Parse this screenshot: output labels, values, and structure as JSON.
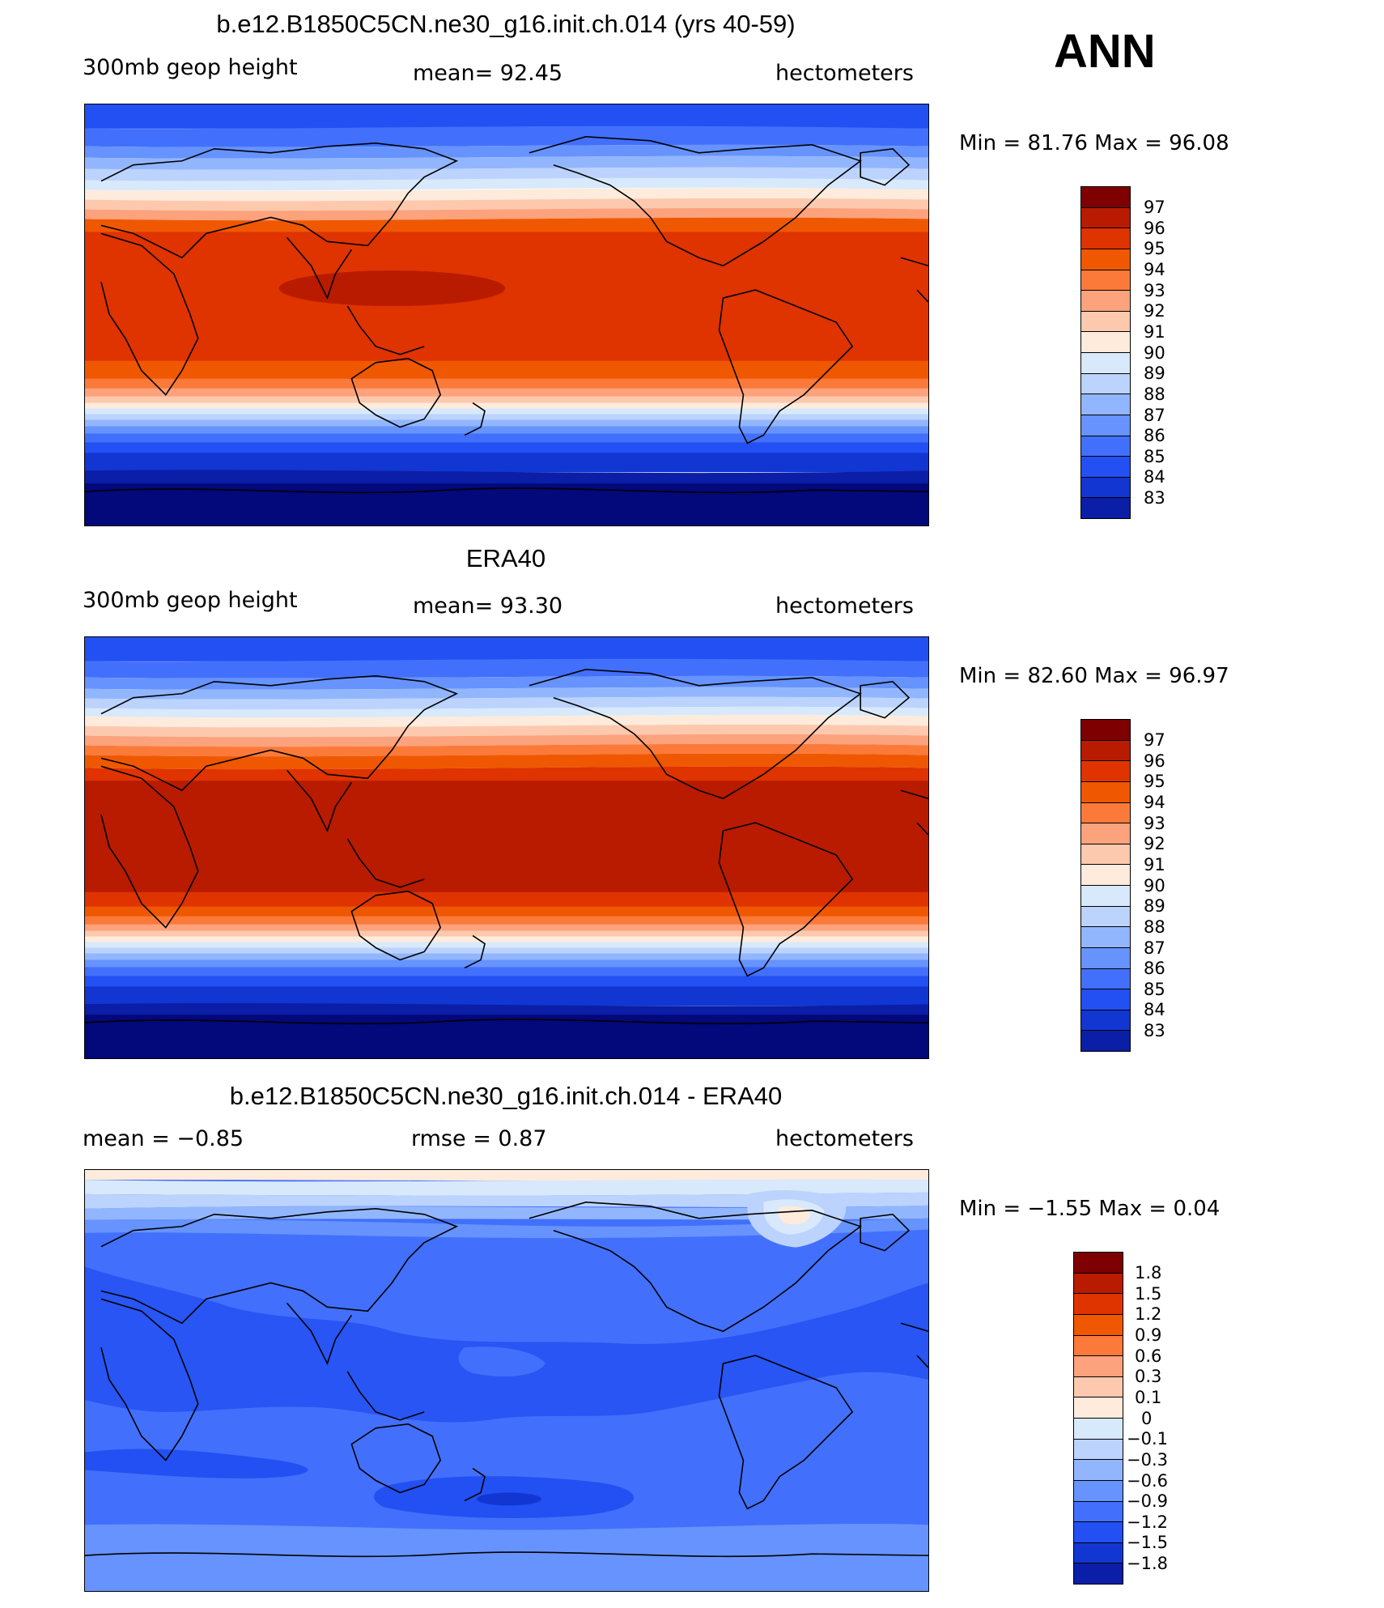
{
  "season": "ANN",
  "palette": {
    "warm": [
      "#7e0000",
      "#b81b00",
      "#df3300",
      "#ef5800",
      "#fb7a3a",
      "#fca27c",
      "#fdc9ae",
      "#feebdc"
    ],
    "cool": [
      "#d8e9fb",
      "#bcd3fd",
      "#92b6fe",
      "#6693fd",
      "#4270fc",
      "#2350f2",
      "#1136d2",
      "#0a1ea7",
      "#03087a"
    ]
  },
  "panels": [
    {
      "title": "b.e12.B1850C5CN.ne30_g16.init.ch.014 (yrs 40-59)",
      "left": "300mb  geop  height",
      "center": "mean=   92.45",
      "right": "hectometers",
      "minmax": "Min  =    81.76  Max  =    96.08",
      "levels": [
        "97",
        "96",
        "95",
        "94",
        "93",
        "92",
        "91",
        "90",
        "89",
        "88",
        "87",
        "86",
        "85",
        "84",
        "83"
      ]
    },
    {
      "title": "ERA40",
      "left": "300mb  geop  height",
      "center": "mean=   93.30",
      "right": "hectometers",
      "minmax": "Min  =    82.60  Max  =    96.97",
      "levels": [
        "97",
        "96",
        "95",
        "94",
        "93",
        "92",
        "91",
        "90",
        "89",
        "88",
        "87",
        "86",
        "85",
        "84",
        "83"
      ]
    },
    {
      "title": "b.e12.B1850C5CN.ne30_g16.init.ch.014 - ERA40",
      "left": "mean  =    −0.85",
      "center": "rmse  =     0.87",
      "right": "hectometers",
      "minmax": "Min  =   −1.55  Max  =      0.04",
      "levels": [
        "1.8",
        "1.5",
        "1.2",
        "0.9",
        "0.6",
        "0.3",
        "0.1",
        "0",
        "−0.1",
        "−0.3",
        "−0.6",
        "−0.9",
        "−1.2",
        "−1.5",
        "−1.8"
      ]
    }
  ]
}
